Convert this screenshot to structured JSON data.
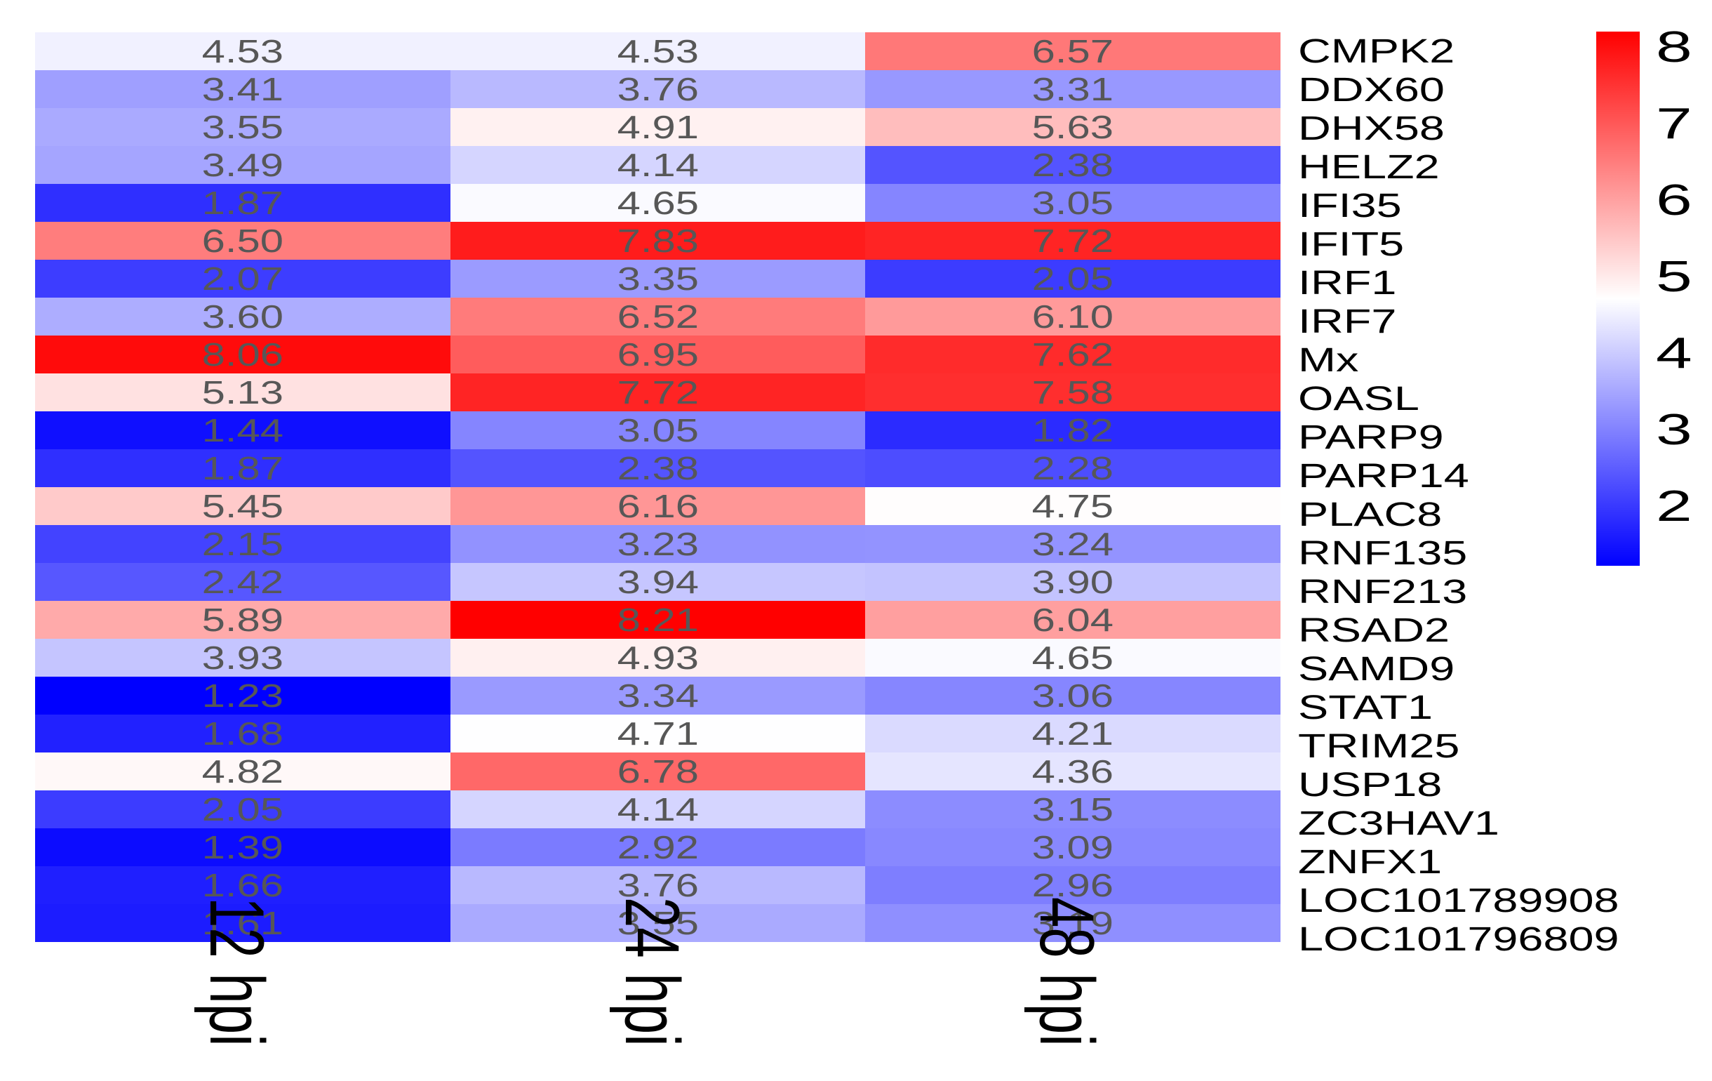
{
  "chart_data": {
    "type": "heatmap",
    "title": "",
    "columns": [
      "12 hpi",
      "24 hpi",
      "48 hpi"
    ],
    "rows": [
      {
        "gene": "CMPK2",
        "values": [
          4.53,
          4.53,
          6.57
        ]
      },
      {
        "gene": "DDX60",
        "values": [
          3.41,
          3.76,
          3.31
        ]
      },
      {
        "gene": "DHX58",
        "values": [
          3.55,
          4.91,
          5.63
        ]
      },
      {
        "gene": "HELZ2",
        "values": [
          3.49,
          4.14,
          2.38
        ]
      },
      {
        "gene": "IFI35",
        "values": [
          1.87,
          4.65,
          3.05
        ]
      },
      {
        "gene": "IFIT5",
        "values": [
          6.5,
          7.83,
          7.72
        ]
      },
      {
        "gene": "IRF1",
        "values": [
          2.07,
          3.35,
          2.05
        ]
      },
      {
        "gene": "IRF7",
        "values": [
          3.6,
          6.52,
          6.1
        ]
      },
      {
        "gene": "Mx",
        "values": [
          8.06,
          6.95,
          7.62
        ]
      },
      {
        "gene": "OASL",
        "values": [
          5.13,
          7.72,
          7.58
        ]
      },
      {
        "gene": "PARP9",
        "values": [
          1.44,
          3.05,
          1.82
        ]
      },
      {
        "gene": "PARP14",
        "values": [
          1.87,
          2.38,
          2.28
        ]
      },
      {
        "gene": "PLAC8",
        "values": [
          5.45,
          6.16,
          4.75
        ]
      },
      {
        "gene": "RNF135",
        "values": [
          2.15,
          3.23,
          3.24
        ]
      },
      {
        "gene": "RNF213",
        "values": [
          2.42,
          3.94,
          3.9
        ]
      },
      {
        "gene": "RSAD2",
        "values": [
          5.89,
          8.21,
          6.04
        ]
      },
      {
        "gene": "SAMD9",
        "values": [
          3.93,
          4.93,
          4.65
        ]
      },
      {
        "gene": "STAT1",
        "values": [
          1.23,
          3.34,
          3.06
        ]
      },
      {
        "gene": "TRIM25",
        "values": [
          1.68,
          4.71,
          4.21
        ]
      },
      {
        "gene": "USP18",
        "values": [
          4.82,
          6.78,
          4.36
        ]
      },
      {
        "gene": "ZC3HAV1",
        "values": [
          2.05,
          4.14,
          3.15
        ]
      },
      {
        "gene": "ZNFX1",
        "values": [
          1.39,
          2.92,
          3.09
        ]
      },
      {
        "gene": "LOC101789908",
        "values": [
          1.66,
          3.76,
          2.96
        ]
      },
      {
        "gene": "LOC101796809",
        "values": [
          1.61,
          3.55,
          3.19
        ]
      }
    ],
    "value_decimals": 2,
    "colormap": {
      "name": "blue-white-red",
      "low_color": "#0000FF",
      "mid_color": "#FFFFFF",
      "high_color": "#FF0000",
      "vmin": 1.23,
      "vmax": 8.21
    },
    "colorbar": {
      "position": "right",
      "ticks": [
        8,
        7,
        6,
        5,
        4,
        3,
        2
      ]
    },
    "cell_text_color": "#575757",
    "label_text_color": "#000000",
    "grid": false,
    "xlabel": "",
    "ylabel": ""
  }
}
